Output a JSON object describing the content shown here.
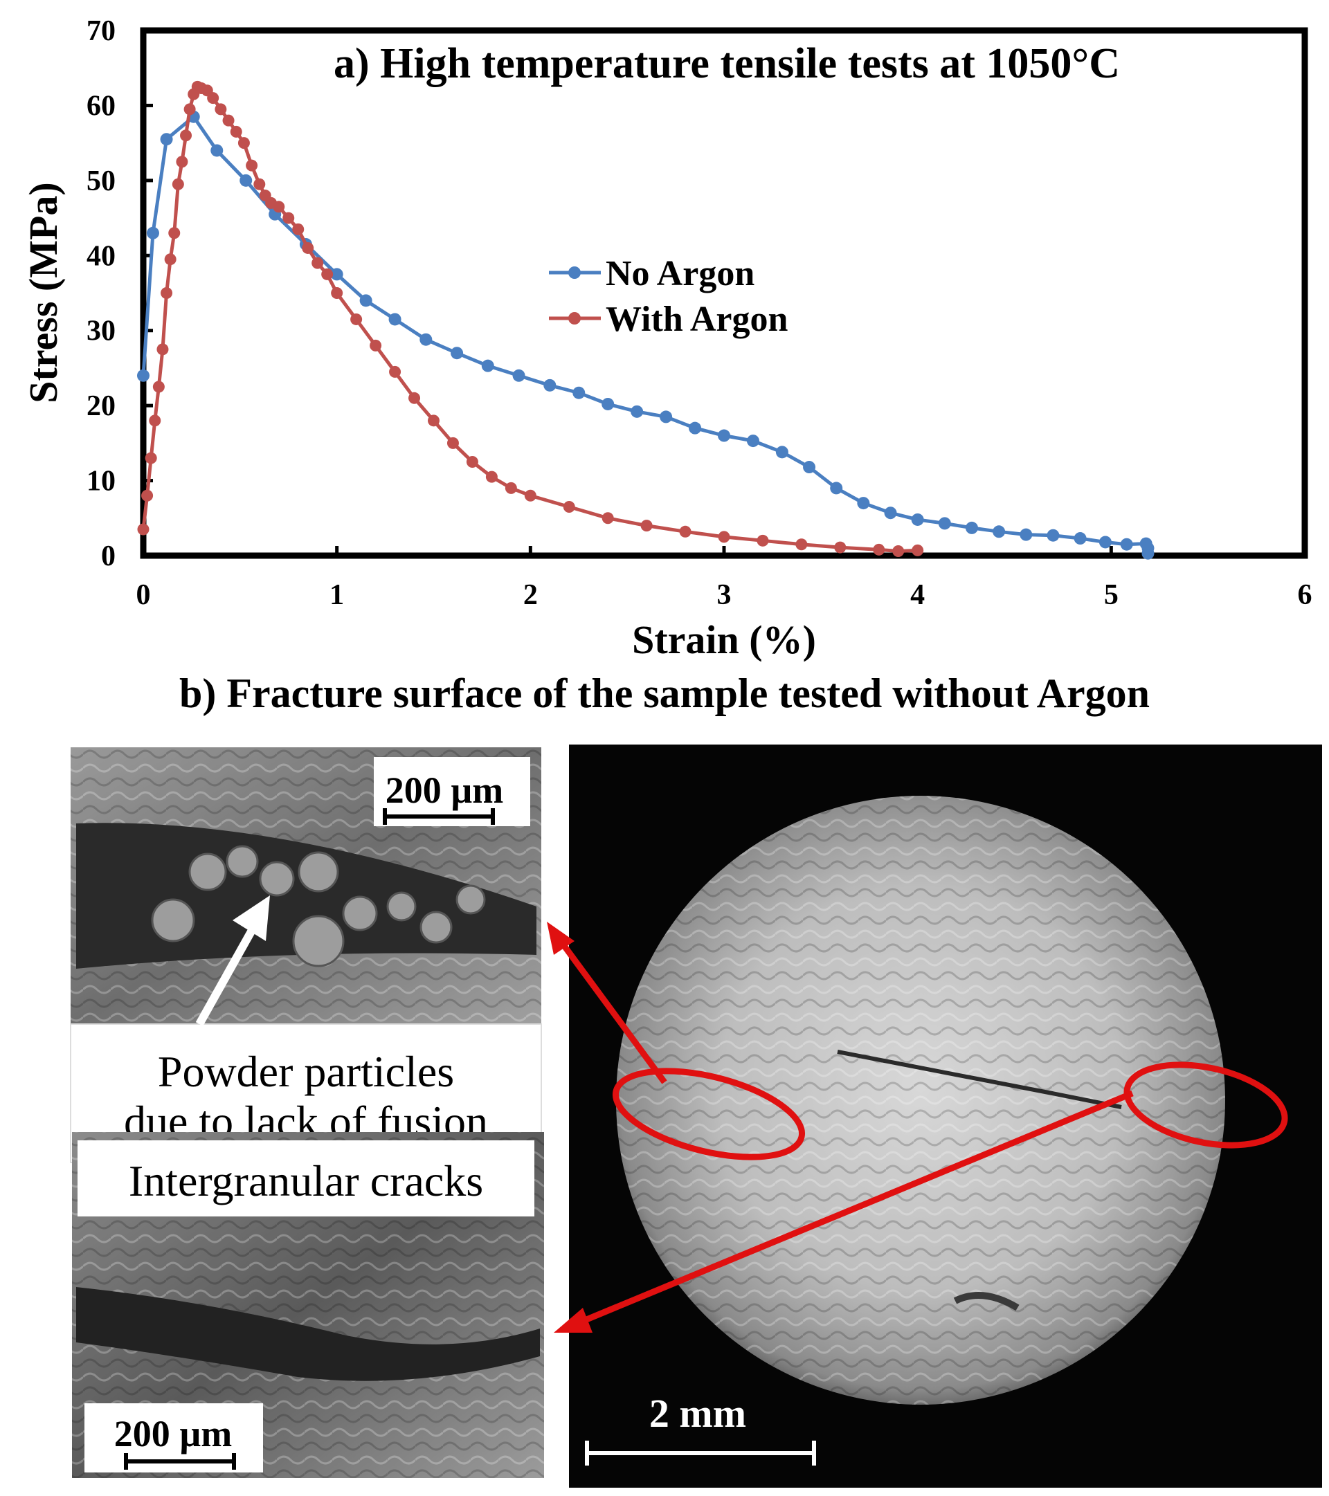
{
  "chart_data": {
    "type": "line",
    "title": "a) High temperature tensile tests at 1050°C",
    "xlabel": "Strain (%)",
    "ylabel": "Stress (MPa)",
    "xlim": [
      0,
      6
    ],
    "ylim": [
      0,
      70
    ],
    "xticks": [
      0,
      1,
      2,
      3,
      4,
      5,
      6
    ],
    "yticks": [
      0,
      10,
      20,
      30,
      40,
      50,
      60,
      70
    ],
    "grid": false,
    "legend_position": "center",
    "series": [
      {
        "name": "No Argon",
        "color": "#4a7fc1",
        "x": [
          0.0,
          0.05,
          0.12,
          0.26,
          0.38,
          0.53,
          0.68,
          0.84,
          1.0,
          1.15,
          1.3,
          1.46,
          1.62,
          1.78,
          1.94,
          2.1,
          2.25,
          2.4,
          2.55,
          2.7,
          2.85,
          3.0,
          3.15,
          3.3,
          3.44,
          3.58,
          3.72,
          3.86,
          4.0,
          4.14,
          4.28,
          4.42,
          4.56,
          4.7,
          4.84,
          4.97,
          5.08,
          5.18,
          5.19,
          5.19
        ],
        "y": [
          24,
          43,
          55.5,
          58.5,
          54,
          50,
          45.5,
          41.5,
          37.5,
          34,
          31.5,
          28.8,
          27,
          25.3,
          24,
          22.7,
          21.7,
          20.2,
          19.2,
          18.5,
          17,
          16,
          15.3,
          13.8,
          11.8,
          9,
          7,
          5.7,
          4.8,
          4.3,
          3.7,
          3.2,
          2.8,
          2.7,
          2.3,
          1.8,
          1.5,
          1.6,
          1.0,
          0.3
        ]
      },
      {
        "name": "With Argon",
        "color": "#c0504d",
        "x": [
          0.0,
          0.02,
          0.04,
          0.06,
          0.08,
          0.1,
          0.12,
          0.14,
          0.16,
          0.18,
          0.2,
          0.22,
          0.24,
          0.26,
          0.28,
          0.3,
          0.33,
          0.36,
          0.4,
          0.44,
          0.48,
          0.52,
          0.56,
          0.6,
          0.63,
          0.66,
          0.7,
          0.75,
          0.8,
          0.85,
          0.9,
          0.95,
          1.0,
          1.1,
          1.2,
          1.3,
          1.4,
          1.5,
          1.6,
          1.7,
          1.8,
          1.9,
          2.0,
          2.2,
          2.4,
          2.6,
          2.8,
          3.0,
          3.2,
          3.4,
          3.6,
          3.8,
          3.9,
          4.0
        ],
        "y": [
          3.5,
          8,
          13,
          18,
          22.5,
          27.5,
          35,
          39.5,
          43,
          49.5,
          52.5,
          56,
          59.5,
          61.5,
          62.5,
          62.3,
          62,
          61,
          59.5,
          58,
          56.5,
          55,
          52,
          49.5,
          48,
          47,
          46.5,
          45,
          43.5,
          41,
          39,
          37.5,
          35,
          31.5,
          28,
          24.5,
          21,
          18,
          15,
          12.5,
          10.5,
          9,
          8,
          6.5,
          5,
          4,
          3.2,
          2.5,
          2,
          1.5,
          1.1,
          0.8,
          0.6,
          0.7
        ]
      }
    ]
  },
  "figure_b": {
    "title": "b) Fracture surface of the sample tested without Argon",
    "top_inset": {
      "scale_label": "200 µm",
      "caption_line1": "Powder particles",
      "caption_line2": "due to lack of fusion"
    },
    "bottom_inset": {
      "caption": "Intergranular cracks",
      "scale_label": "200 µm"
    },
    "main_image": {
      "scale_label": "2 mm"
    },
    "highlight_color": "#e01010"
  }
}
